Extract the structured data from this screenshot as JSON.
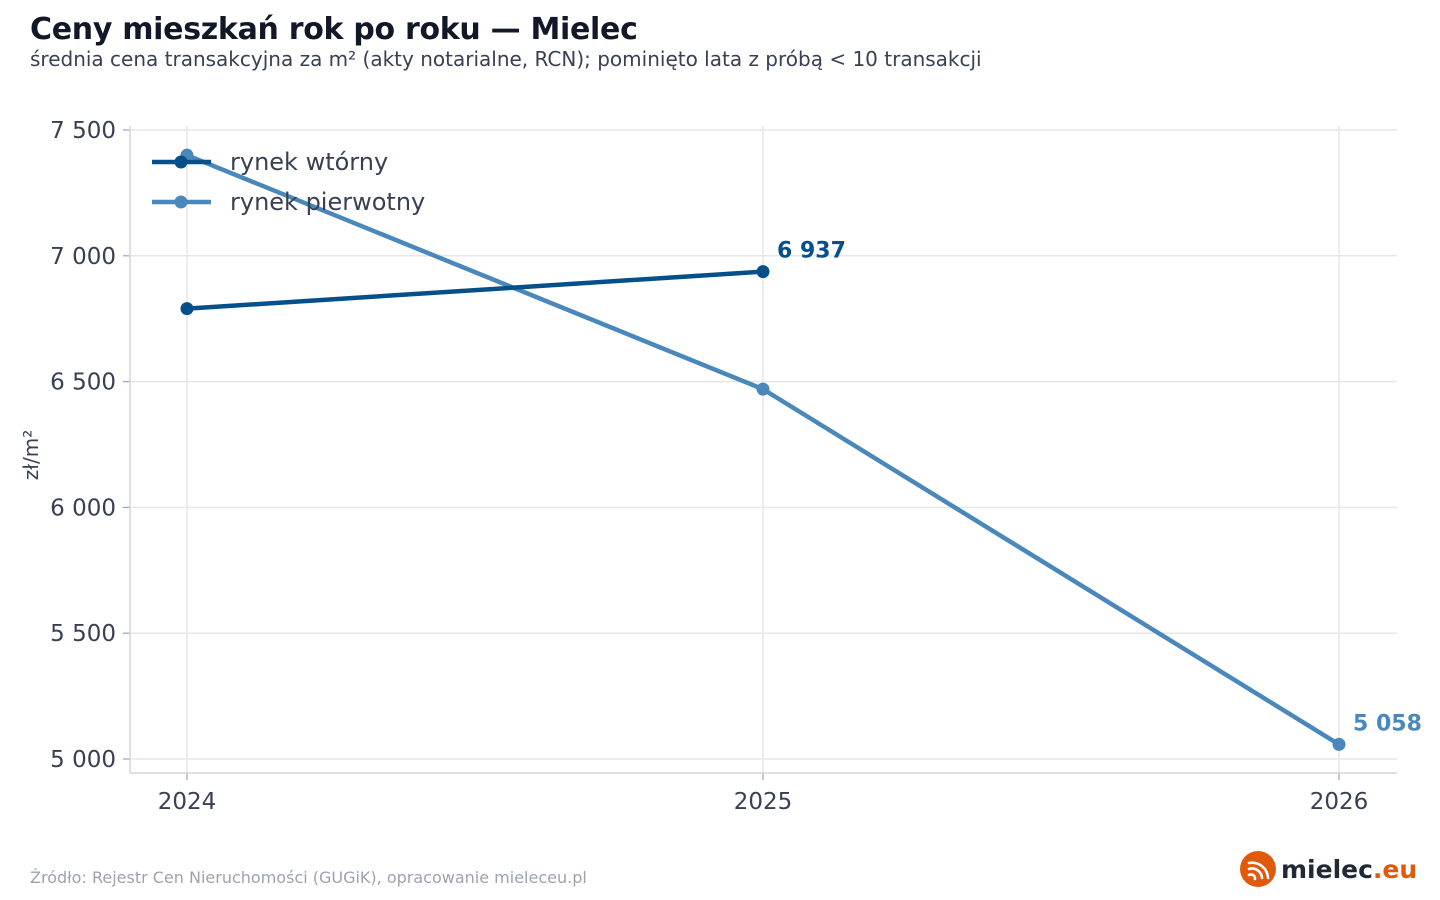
{
  "header": {
    "title": "Ceny mieszkań rok po roku — Mielec",
    "subtitle": "średnia cena transakcyjna za m² (akty notarialne, RCN); pominięto lata z próbą < 10 transakcji"
  },
  "footer": {
    "source": "Źródło: Rejestr Cen Nieruchomości (GUGiK), opracowanie mieleceu.pl"
  },
  "logo": {
    "name": "mielec",
    "tld": ".eu",
    "icon": "signal-waves-icon",
    "color_brand": "#e05a0c"
  },
  "chart_data": {
    "type": "line",
    "ylabel": "zł/m²",
    "xlabel": "",
    "x": [
      2024,
      2025,
      2026
    ],
    "x_tick_labels": [
      "2024",
      "2025",
      "2026"
    ],
    "ylim": [
      4950,
      7550
    ],
    "y_ticks": [
      5000,
      5500,
      6000,
      6500,
      7000,
      7500
    ],
    "y_tick_labels": [
      "5 000",
      "5 500",
      "6 000",
      "6 500",
      "7 000",
      "7 500"
    ],
    "grid": true,
    "legend_position": "top-left",
    "series": [
      {
        "name": "rynek wtórny",
        "color": "#05508a",
        "x": [
          2024,
          2025
        ],
        "values": [
          6790,
          6937
        ],
        "end_label": "6 937"
      },
      {
        "name": "rynek pierwotny",
        "color": "#4a88bb",
        "x": [
          2024,
          2025,
          2026
        ],
        "values": [
          7400,
          6470,
          5058
        ],
        "end_label": "5 058"
      }
    ]
  }
}
